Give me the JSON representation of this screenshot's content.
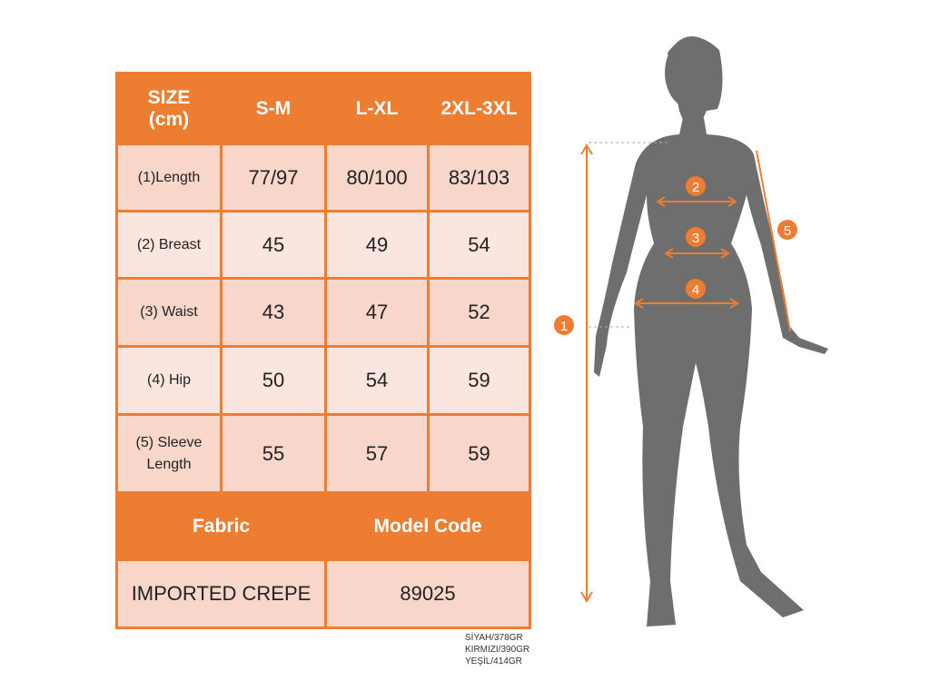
{
  "table": {
    "header": [
      "SIZE (cm)",
      "S-M",
      "L-XL",
      "2XL-3XL"
    ],
    "rows": [
      {
        "label": "(1)Length",
        "values": [
          "77/97",
          "80/100",
          "83/103"
        ]
      },
      {
        "label": "(2) Breast",
        "values": [
          "45",
          "49",
          "54"
        ]
      },
      {
        "label": "(3) Waist",
        "values": [
          "43",
          "47",
          "52"
        ]
      },
      {
        "label": "(4) Hip",
        "values": [
          "50",
          "54",
          "59"
        ]
      },
      {
        "label": "(5) Sleeve Length",
        "values": [
          "55",
          "57",
          "59"
        ]
      }
    ],
    "footer_header": [
      "Fabric",
      "Model Code"
    ],
    "footer_values": [
      "IMPORTED CREPE",
      "89025"
    ]
  },
  "weights": [
    "SİYAH/378GR",
    "KIRMIZI/390GR",
    "YEŞİL/414GR"
  ],
  "markers": [
    "1",
    "2",
    "3",
    "4",
    "5"
  ],
  "colors": {
    "accent": "#ed7d31",
    "silhouette": "#6e6e6e"
  }
}
